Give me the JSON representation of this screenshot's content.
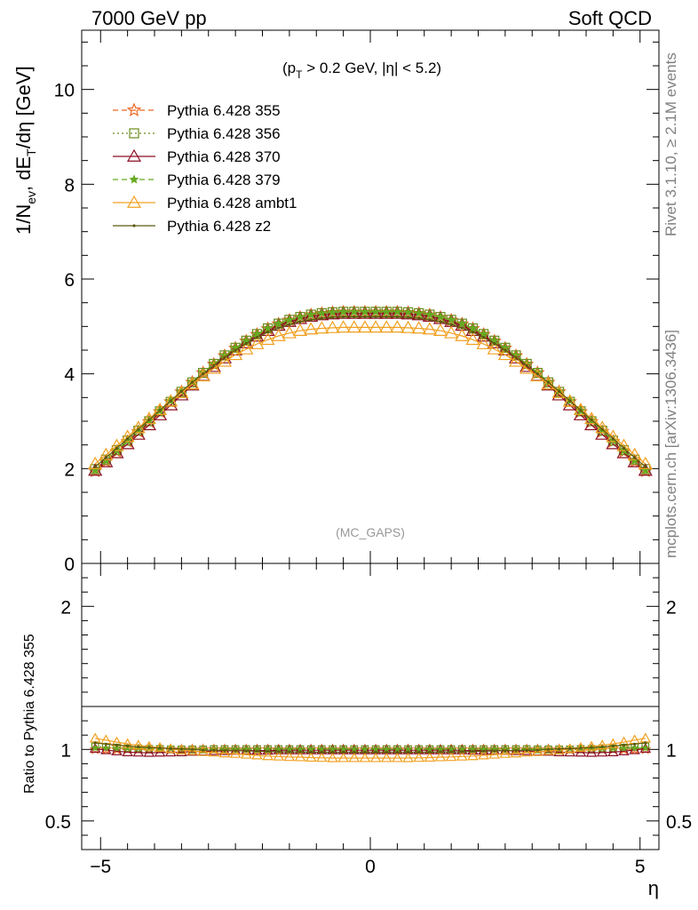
{
  "header": {
    "left_title": "7000 GeV pp",
    "right_title": "Soft QCD"
  },
  "side_labels": {
    "rivet": "Rivet 3.1.10, ≥ 2.1M events",
    "source": "mcplots.cern.ch [arXiv:1306.3436]"
  },
  "watermark": "(MC_GAPS)",
  "cut_label": {
    "p": "(p",
    "sub": "T",
    "rest": " > 0.2 GeV, |η| < 5.2)"
  },
  "ylabel_main": {
    "a": "1/N",
    "a_sub": "ev",
    "b": ", dE",
    "b_sub": "T",
    "c": "/dη [GeV]"
  },
  "ylabel_ratio": "Ratio to Pythia 6.428 355",
  "xlabel": "η",
  "legend": [
    {
      "label": "Pythia 6.428 355",
      "color": "#ee6622",
      "marker": "star-open",
      "dash": "6,4"
    },
    {
      "label": "Pythia 6.428 356",
      "color": "#6a8c1a",
      "marker": "square-open",
      "dash": "2,3"
    },
    {
      "label": "Pythia 6.428 370",
      "color": "#8b0f23",
      "marker": "triangle-open",
      "dash": ""
    },
    {
      "label": "Pythia 6.428 379",
      "color": "#66aa22",
      "marker": "star-filled",
      "dash": "6,4"
    },
    {
      "label": "Pythia 6.428 ambt1",
      "color": "#f0a020",
      "marker": "triangle-open",
      "dash": ""
    },
    {
      "label": "Pythia 6.428 z2",
      "color": "#5c5a10",
      "marker": "dot",
      "dash": ""
    }
  ],
  "chart_data": {
    "type": "line",
    "main": {
      "xlim": [
        -5.35,
        5.35
      ],
      "ylim": [
        0,
        11.25
      ],
      "yticks": [
        0,
        2,
        4,
        6,
        8,
        10
      ],
      "ytick_labels": [
        "0",
        "2",
        "4",
        "6",
        "8",
        "10"
      ]
    },
    "ratio": {
      "xlim": [
        -5.35,
        5.35
      ],
      "ylim": [
        0.3,
        2.3
      ],
      "yticks": [
        0.5,
        1,
        2
      ],
      "ytick_labels": [
        "0.5",
        "1",
        "2"
      ]
    },
    "xticks": [
      -5,
      0,
      5
    ],
    "xtick_labels": [
      "−5",
      "0",
      "5"
    ],
    "x": [
      -5.1,
      -4.9,
      -4.7,
      -4.5,
      -4.3,
      -4.1,
      -3.9,
      -3.7,
      -3.5,
      -3.3,
      -3.1,
      -2.9,
      -2.7,
      -2.5,
      -2.3,
      -2.1,
      -1.9,
      -1.7,
      -1.5,
      -1.3,
      -1.1,
      -0.9,
      -0.7,
      -0.5,
      -0.3,
      -0.1,
      0.1,
      0.3,
      0.5,
      0.7,
      0.9,
      1.1,
      1.3,
      1.5,
      1.7,
      1.9,
      2.1,
      2.3,
      2.5,
      2.7,
      2.9,
      3.1,
      3.3,
      3.5,
      3.7,
      3.9,
      4.1,
      4.3,
      4.5,
      4.7,
      4.9,
      5.1
    ],
    "series": [
      {
        "name": "Pythia 6.428 355",
        "values": [
          1.95,
          2.15,
          2.36,
          2.57,
          2.78,
          2.99,
          3.2,
          3.41,
          3.62,
          3.82,
          4.02,
          4.2,
          4.38,
          4.54,
          4.69,
          4.83,
          4.95,
          5.05,
          5.13,
          5.19,
          5.24,
          5.27,
          5.29,
          5.3,
          5.3,
          5.3,
          5.3,
          5.3,
          5.3,
          5.29,
          5.27,
          5.24,
          5.19,
          5.13,
          5.05,
          4.95,
          4.83,
          4.69,
          4.54,
          4.38,
          4.2,
          4.02,
          3.82,
          3.62,
          3.41,
          3.2,
          2.99,
          2.78,
          2.57,
          2.36,
          2.15,
          1.95
        ]
      },
      {
        "name": "Pythia 6.428 356",
        "values": [
          1.99,
          2.19,
          2.39,
          2.59,
          2.8,
          3.0,
          3.21,
          3.41,
          3.62,
          3.82,
          4.02,
          4.21,
          4.39,
          4.55,
          4.7,
          4.84,
          4.96,
          5.06,
          5.14,
          5.2,
          5.25,
          5.28,
          5.3,
          5.31,
          5.31,
          5.31,
          5.31,
          5.31,
          5.31,
          5.3,
          5.28,
          5.25,
          5.2,
          5.14,
          5.06,
          4.96,
          4.84,
          4.7,
          4.55,
          4.39,
          4.21,
          4.02,
          3.82,
          3.62,
          3.41,
          3.21,
          3.0,
          2.8,
          2.59,
          2.39,
          2.19,
          1.99
        ]
      },
      {
        "name": "Pythia 6.428 370",
        "values": [
          1.96,
          2.14,
          2.33,
          2.52,
          2.72,
          2.92,
          3.13,
          3.34,
          3.55,
          3.76,
          3.96,
          4.15,
          4.33,
          4.5,
          4.65,
          4.79,
          4.91,
          5.02,
          5.1,
          5.16,
          5.21,
          5.24,
          5.26,
          5.27,
          5.27,
          5.27,
          5.27,
          5.27,
          5.27,
          5.26,
          5.24,
          5.21,
          5.16,
          5.1,
          5.02,
          4.91,
          4.79,
          4.65,
          4.5,
          4.33,
          4.15,
          3.96,
          3.76,
          3.55,
          3.34,
          3.13,
          2.92,
          2.72,
          2.52,
          2.33,
          2.14,
          1.96
        ]
      },
      {
        "name": "Pythia 6.428 379",
        "values": [
          1.97,
          2.17,
          2.38,
          2.59,
          2.8,
          3.01,
          3.22,
          3.43,
          3.63,
          3.83,
          4.03,
          4.21,
          4.39,
          4.55,
          4.7,
          4.84,
          4.96,
          5.06,
          5.14,
          5.2,
          5.25,
          5.28,
          5.3,
          5.31,
          5.31,
          5.31,
          5.31,
          5.31,
          5.31,
          5.3,
          5.28,
          5.25,
          5.2,
          5.14,
          5.06,
          4.96,
          4.84,
          4.7,
          4.55,
          4.39,
          4.21,
          4.03,
          3.83,
          3.63,
          3.43,
          3.22,
          3.01,
          2.8,
          2.59,
          2.38,
          2.17,
          1.97
        ]
      },
      {
        "name": "Pythia 6.428 ambt1",
        "values": [
          2.1,
          2.29,
          2.48,
          2.67,
          2.86,
          3.05,
          3.24,
          3.42,
          3.6,
          3.78,
          3.95,
          4.11,
          4.26,
          4.4,
          4.52,
          4.63,
          4.72,
          4.8,
          4.86,
          4.91,
          4.94,
          4.96,
          4.97,
          4.98,
          4.98,
          4.98,
          4.98,
          4.98,
          4.98,
          4.97,
          4.96,
          4.94,
          4.91,
          4.86,
          4.8,
          4.72,
          4.63,
          4.52,
          4.4,
          4.26,
          4.11,
          3.95,
          3.78,
          3.6,
          3.42,
          3.24,
          3.05,
          2.86,
          2.67,
          2.48,
          2.29,
          2.1
        ]
      },
      {
        "name": "Pythia 6.428 z2",
        "values": [
          2.04,
          2.23,
          2.43,
          2.63,
          2.83,
          3.03,
          3.23,
          3.43,
          3.63,
          3.82,
          4.0,
          4.18,
          4.35,
          4.5,
          4.64,
          4.77,
          4.88,
          4.97,
          5.04,
          5.1,
          5.14,
          5.17,
          5.19,
          5.2,
          5.2,
          5.2,
          5.2,
          5.2,
          5.2,
          5.19,
          5.17,
          5.14,
          5.1,
          5.04,
          4.97,
          4.88,
          4.77,
          4.64,
          4.5,
          4.35,
          4.18,
          4.0,
          3.82,
          3.63,
          3.43,
          3.23,
          3.03,
          2.83,
          2.63,
          2.43,
          2.23,
          2.04
        ]
      }
    ]
  }
}
